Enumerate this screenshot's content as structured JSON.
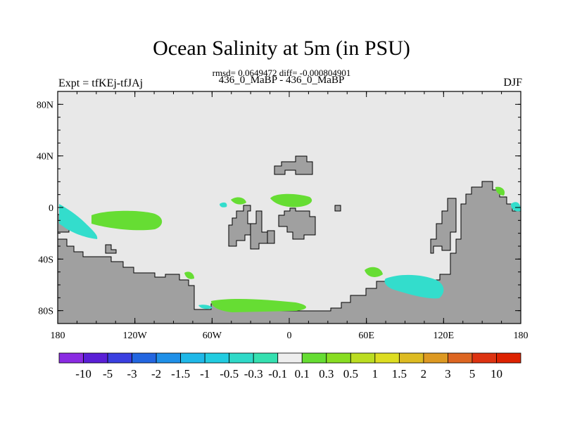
{
  "title": "Ocean Salinity at 5m (in PSU)",
  "stats_line": "rmsd= 0.0649472 diff= -0.000804901",
  "comparison_line": "436_0_MaBP - 436_0_MaBP",
  "experiment_label": "Expt = tfKEj-tfJAj",
  "season_label": "DJF",
  "map": {
    "projection": "cylindrical equidistant",
    "lon_range": [
      -180,
      180
    ],
    "lat_range": [
      -90,
      90
    ],
    "lat_ticks": [
      {
        "value": 80,
        "label": "80N"
      },
      {
        "value": 40,
        "label": "40N"
      },
      {
        "value": 0,
        "label": "0"
      },
      {
        "value": -40,
        "label": "40S"
      },
      {
        "value": -80,
        "label": "80S"
      }
    ],
    "lon_ticks": [
      {
        "value": -180,
        "label": "180"
      },
      {
        "value": -120,
        "label": "120W"
      },
      {
        "value": -60,
        "label": "60W"
      },
      {
        "value": 0,
        "label": "0"
      },
      {
        "value": 60,
        "label": "60E"
      },
      {
        "value": 120,
        "label": "120E"
      },
      {
        "value": 180,
        "label": "180"
      }
    ],
    "ocean_background_color": "#e8e8e8",
    "land_color": "#a0a0a0",
    "green_anomaly_color": "#66dd33",
    "teal_anomaly_color": "#33ddcc",
    "cyan_anomaly_color": "#22ccdd"
  },
  "colorbar": {
    "labels": [
      "-10",
      "-5",
      "-3",
      "-2",
      "-1.5",
      "-1",
      "-0.5",
      "-0.3",
      "-0.1",
      "0.1",
      "0.3",
      "0.5",
      "1",
      "1.5",
      "2",
      "3",
      "5",
      "10"
    ],
    "colors": [
      "#8a2be2",
      "#5a1fd6",
      "#3a3fe0",
      "#2366e0",
      "#1f90e8",
      "#1fb8e8",
      "#22cce0",
      "#2fd9c8",
      "#35e0b0",
      "#eeeeee",
      "#66dd33",
      "#88dd22",
      "#bbdd22",
      "#dddd22",
      "#ddbb22",
      "#dd9922",
      "#dd6622",
      "#dd3311",
      "#dd2200"
    ]
  }
}
